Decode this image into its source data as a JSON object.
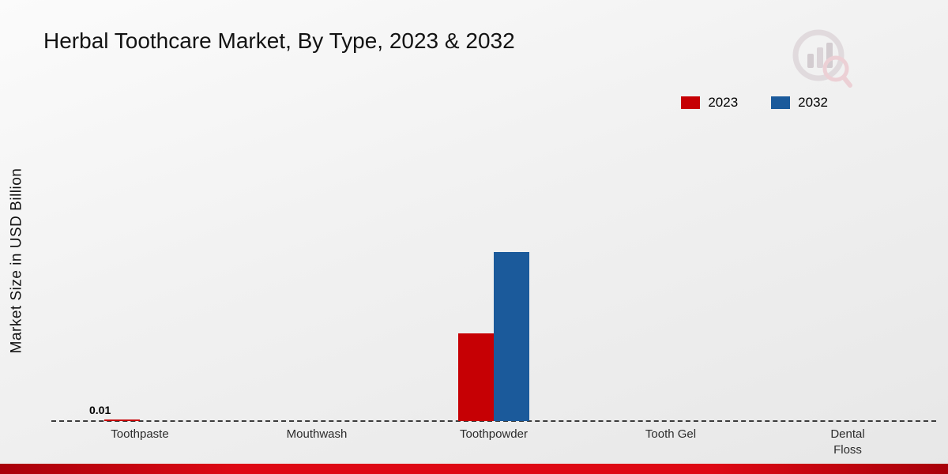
{
  "title": "Herbal Toothcare Market, By Type, 2023 & 2032",
  "ylabel": "Market Size in USD Billion",
  "annotation": "0.01",
  "colors": {
    "series_2023": "#c60004",
    "series_2032": "#1b5a9b",
    "footer_bar": "#d40a12"
  },
  "chart_data": {
    "type": "bar",
    "title": "Herbal Toothcare Market, By Type, 2023 & 2032",
    "ylabel": "Market Size in USD Billion",
    "categories": [
      "Toothpaste",
      "Mouthwash",
      "Toothpowder",
      "Tooth Gel",
      "Dental Floss"
    ],
    "tick_labels": [
      "Toothpaste",
      "Mouthwash",
      "Toothpowder",
      "Tooth Gel",
      "Dental\nFloss"
    ],
    "series": [
      {
        "name": "2023",
        "color": "#c60004",
        "values": [
          0.01,
          0,
          0.45,
          0,
          0
        ]
      },
      {
        "name": "2032",
        "color": "#1b5a9b",
        "values": [
          0,
          0,
          0.87,
          0,
          0
        ]
      }
    ],
    "ylim": [
      0,
      1.6
    ],
    "grid": false,
    "legend_position": "top-right",
    "data_labels": [
      {
        "category_index": 0,
        "series_index": 0,
        "text": "0.01"
      }
    ]
  }
}
